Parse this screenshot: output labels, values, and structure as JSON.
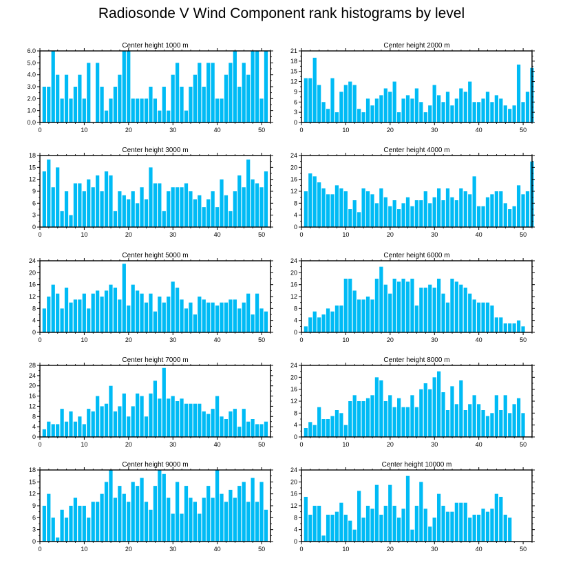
{
  "title": "Radiosonde V Wind Component rank histograms by level",
  "colors": {
    "bar": "#00bbf5",
    "axis": "#000000"
  },
  "chart_data": [
    {
      "type": "bar",
      "title": "Center height 1000 m",
      "xlim": [
        0,
        52
      ],
      "ylim": [
        0,
        6
      ],
      "xticks": [
        0,
        10,
        20,
        30,
        40,
        50
      ],
      "xtick_labels": [
        "0",
        "10",
        "20",
        "30",
        "40",
        "50"
      ],
      "yticks": [
        0,
        1,
        2,
        3,
        4,
        5,
        6
      ],
      "ytick_labels": [
        "0.0",
        "1.0",
        "2.0",
        "3.0",
        "4.0",
        "5.0",
        "6.0"
      ],
      "values": [
        3,
        3,
        6,
        4,
        2,
        4,
        2,
        3,
        4,
        2,
        5,
        0,
        5,
        3,
        1,
        2,
        3,
        4,
        6,
        6,
        2,
        2,
        2,
        2,
        3,
        2,
        1,
        3,
        1,
        4,
        5,
        3,
        1,
        3,
        4,
        5,
        3,
        5,
        5,
        2,
        2,
        4,
        5,
        6,
        3,
        5,
        4,
        6,
        6,
        2,
        6
      ]
    },
    {
      "type": "bar",
      "title": "Center height 2000 m",
      "xlim": [
        0,
        52
      ],
      "ylim": [
        0,
        21
      ],
      "xticks": [
        0,
        10,
        20,
        30,
        40,
        50
      ],
      "xtick_labels": [
        "0",
        "10",
        "20",
        "30",
        "40",
        "50"
      ],
      "yticks": [
        0,
        3,
        6,
        9,
        12,
        15,
        18,
        21
      ],
      "ytick_labels": [
        "0",
        "3",
        "6",
        "9",
        "12",
        "15",
        "18",
        "21"
      ],
      "values": [
        13,
        13,
        19,
        11,
        6,
        4,
        13,
        3,
        9,
        11,
        12,
        11,
        4,
        3,
        7,
        5,
        7,
        8,
        10,
        9,
        12,
        3,
        7,
        8,
        7,
        10,
        6,
        3,
        5,
        11,
        8,
        6,
        9,
        5,
        7,
        10,
        9,
        12,
        6,
        6,
        7,
        9,
        6,
        8,
        7,
        5,
        4,
        5,
        17,
        6,
        9,
        16
      ]
    },
    {
      "type": "bar",
      "title": "Center height 3000 m",
      "xlim": [
        0,
        52
      ],
      "ylim": [
        0,
        18
      ],
      "xticks": [
        0,
        10,
        20,
        30,
        40,
        50
      ],
      "xtick_labels": [
        "0",
        "10",
        "20",
        "30",
        "40",
        "50"
      ],
      "yticks": [
        0,
        3,
        6,
        9,
        12,
        15,
        18
      ],
      "ytick_labels": [
        "0",
        "3",
        "6",
        "9",
        "12",
        "15",
        "18"
      ],
      "values": [
        14,
        17,
        10,
        15,
        4,
        9,
        3,
        11,
        11,
        9,
        12,
        10,
        13,
        9,
        14,
        13,
        4,
        9,
        8,
        7,
        9,
        6,
        10,
        7,
        15,
        11,
        11,
        4,
        9,
        10,
        10,
        10,
        11,
        9,
        7,
        8,
        5,
        7,
        9,
        5,
        12,
        8,
        4,
        9,
        13,
        10,
        17,
        12,
        11,
        10,
        14
      ]
    },
    {
      "type": "bar",
      "title": "Center height 4000 m",
      "xlim": [
        0,
        52
      ],
      "ylim": [
        0,
        24
      ],
      "xticks": [
        0,
        10,
        20,
        30,
        40,
        50
      ],
      "xtick_labels": [
        "0",
        "10",
        "20",
        "30",
        "40",
        "50"
      ],
      "yticks": [
        0,
        4,
        8,
        12,
        16,
        20,
        24
      ],
      "ytick_labels": [
        "0",
        "4",
        "8",
        "12",
        "16",
        "20",
        "24"
      ],
      "values": [
        12,
        18,
        17,
        15,
        13,
        11,
        11,
        14,
        13,
        12,
        6,
        9,
        5,
        13,
        12,
        11,
        8,
        13,
        10,
        7,
        9,
        6,
        8,
        10,
        7,
        9,
        9,
        12,
        8,
        10,
        13,
        9,
        13,
        10,
        9,
        13,
        12,
        11,
        17,
        7,
        7,
        10,
        11,
        12,
        12,
        8,
        6,
        7,
        14,
        11,
        12,
        22
      ]
    },
    {
      "type": "bar",
      "title": "Center height 5000 m",
      "xlim": [
        0,
        52
      ],
      "ylim": [
        0,
        24
      ],
      "xticks": [
        0,
        10,
        20,
        30,
        40,
        50
      ],
      "xtick_labels": [
        "0",
        "10",
        "20",
        "30",
        "40",
        "50"
      ],
      "yticks": [
        0,
        4,
        8,
        12,
        16,
        20,
        24
      ],
      "ytick_labels": [
        "0",
        "4",
        "8",
        "12",
        "16",
        "20",
        "24"
      ],
      "values": [
        8,
        12,
        16,
        13,
        8,
        15,
        10,
        11,
        11,
        13,
        8,
        13,
        14,
        12,
        14,
        16,
        15,
        11,
        23,
        9,
        16,
        14,
        13,
        10,
        13,
        7,
        12,
        10,
        12,
        17,
        15,
        11,
        8,
        10,
        6,
        12,
        11,
        10,
        10,
        9,
        10,
        10,
        11,
        11,
        8,
        10,
        13,
        6,
        13,
        8,
        7
      ]
    },
    {
      "type": "bar",
      "title": "Center height 6000 m",
      "xlim": [
        0,
        52
      ],
      "ylim": [
        0,
        24
      ],
      "xticks": [
        0,
        10,
        20,
        30,
        40,
        50
      ],
      "xtick_labels": [
        "0",
        "10",
        "20",
        "30",
        "40",
        "50"
      ],
      "yticks": [
        0,
        4,
        8,
        12,
        16,
        20,
        24
      ],
      "ytick_labels": [
        "0",
        "4",
        "8",
        "12",
        "16",
        "20",
        "24"
      ],
      "values": [
        2,
        5,
        7,
        5,
        6,
        8,
        7,
        9,
        9,
        18,
        18,
        14,
        11,
        11,
        12,
        11,
        18,
        22,
        16,
        13,
        18,
        17,
        18,
        17,
        18,
        9,
        15,
        15,
        16,
        15,
        18,
        13,
        10,
        18,
        17,
        16,
        15,
        13,
        11,
        10,
        10,
        10,
        9,
        5,
        5,
        3,
        3,
        3,
        4,
        2
      ]
    },
    {
      "type": "bar",
      "title": "Center height 7000 m",
      "xlim": [
        0,
        52
      ],
      "ylim": [
        0,
        28
      ],
      "xticks": [
        0,
        10,
        20,
        30,
        40,
        50
      ],
      "xtick_labels": [
        "0",
        "10",
        "20",
        "30",
        "40",
        "50"
      ],
      "yticks": [
        0,
        4,
        8,
        12,
        16,
        20,
        24,
        28
      ],
      "ytick_labels": [
        "0",
        "4",
        "8",
        "12",
        "16",
        "20",
        "24",
        "28"
      ],
      "values": [
        3,
        6,
        5,
        5,
        11,
        6,
        10,
        6,
        8,
        5,
        11,
        10,
        16,
        12,
        13,
        20,
        10,
        12,
        17,
        8,
        12,
        17,
        16,
        8,
        17,
        22,
        15,
        27,
        15,
        16,
        14,
        15,
        13,
        13,
        13,
        13,
        10,
        9,
        11,
        16,
        8,
        7,
        10,
        11,
        4,
        11,
        6,
        7,
        5,
        5,
        6
      ]
    },
    {
      "type": "bar",
      "title": "Center height 8000 m",
      "xlim": [
        0,
        52
      ],
      "ylim": [
        0,
        24
      ],
      "xticks": [
        0,
        10,
        20,
        30,
        40,
        50
      ],
      "xtick_labels": [
        "0",
        "10",
        "20",
        "30",
        "40",
        "50"
      ],
      "yticks": [
        0,
        4,
        8,
        12,
        16,
        20,
        24
      ],
      "ytick_labels": [
        "0",
        "4",
        "8",
        "12",
        "16",
        "20",
        "24"
      ],
      "values": [
        3,
        5,
        4,
        10,
        6,
        6,
        7,
        9,
        8,
        4,
        12,
        14,
        12,
        12,
        13,
        14,
        20,
        19,
        12,
        14,
        10,
        13,
        10,
        10,
        14,
        10,
        16,
        18,
        16,
        20,
        22,
        15,
        9,
        17,
        11,
        19,
        9,
        11,
        14,
        11,
        9,
        7,
        8,
        14,
        9,
        14,
        8,
        11,
        13,
        8
      ]
    },
    {
      "type": "bar",
      "title": "Center height 9000 m",
      "xlim": [
        0,
        52
      ],
      "ylim": [
        0,
        18
      ],
      "xticks": [
        0,
        10,
        20,
        30,
        40,
        50
      ],
      "xtick_labels": [
        "0",
        "10",
        "20",
        "30",
        "40",
        "50"
      ],
      "yticks": [
        0,
        3,
        6,
        9,
        12,
        15,
        18
      ],
      "ytick_labels": [
        "0",
        "3",
        "6",
        "9",
        "12",
        "15",
        "18"
      ],
      "values": [
        9,
        12,
        6,
        1,
        8,
        6,
        9,
        11,
        9,
        9,
        6,
        10,
        10,
        12,
        15,
        18,
        11,
        14,
        12,
        10,
        15,
        14,
        16,
        10,
        8,
        14,
        18,
        17,
        11,
        7,
        15,
        7,
        14,
        11,
        10,
        7,
        11,
        14,
        11,
        18,
        12,
        10,
        13,
        11,
        14,
        15,
        10,
        16,
        10,
        15,
        8
      ]
    },
    {
      "type": "bar",
      "title": "Center height 10000 m",
      "xlim": [
        0,
        52
      ],
      "ylim": [
        0,
        24
      ],
      "xticks": [
        0,
        10,
        20,
        30,
        40,
        50
      ],
      "xtick_labels": [
        "0",
        "10",
        "20",
        "30",
        "40",
        "50"
      ],
      "yticks": [
        0,
        4,
        8,
        12,
        16,
        20,
        24
      ],
      "ytick_labels": [
        "0",
        "4",
        "8",
        "12",
        "16",
        "20",
        "24"
      ],
      "values": [
        15,
        9,
        12,
        12,
        2,
        9,
        9,
        10,
        13,
        9,
        7,
        4,
        17,
        8,
        12,
        11,
        19,
        9,
        12,
        19,
        12,
        8,
        11,
        22,
        4,
        12,
        20,
        11,
        5,
        8,
        16,
        12,
        10,
        10,
        13,
        13,
        13,
        8,
        9,
        9,
        11,
        10,
        11,
        16,
        15,
        9,
        8
      ]
    }
  ]
}
